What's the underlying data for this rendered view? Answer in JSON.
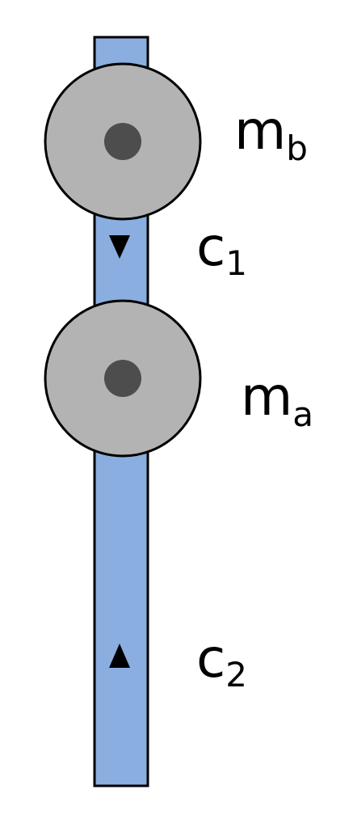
{
  "figure": {
    "description_labels": {
      "mass_upper": {
        "symbol": "m",
        "subscript": "b"
      },
      "mass_lower": {
        "symbol": "m",
        "subscript": "a"
      },
      "coeff_upper": {
        "symbol": "c",
        "subscript": "1"
      },
      "coeff_lower": {
        "symbol": "c",
        "subscript": "2"
      }
    },
    "colors": {
      "rod_fill": "#8aaee0",
      "rod_stroke": "#000000",
      "disk_fill": "#b3b3b3",
      "disk_stroke": "#000000",
      "hub_fill": "#4d4d4d",
      "arrow_fill": "#000000",
      "background": "#ffffff"
    },
    "arrows": {
      "upper": "down-triangle-icon",
      "lower": "up-triangle-icon"
    }
  }
}
